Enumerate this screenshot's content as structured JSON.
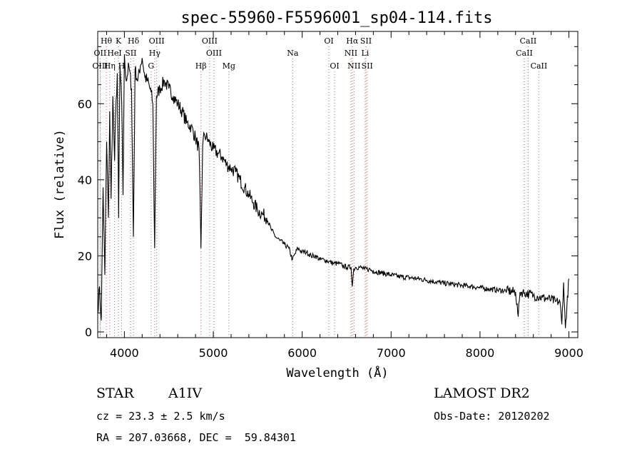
{
  "chart_data": {
    "type": "line",
    "title": "spec-55960-F5596001_sp04-114.fits",
    "xlabel": "Wavelength (Å)",
    "ylabel": "Flux (relative)",
    "xlim": [
      3700,
      9100
    ],
    "ylim": [
      -1.5,
      79
    ],
    "xticks": [
      4000,
      5000,
      6000,
      7000,
      8000,
      9000
    ],
    "yticks": [
      0,
      20,
      40,
      60
    ],
    "grid": false,
    "series": [
      {
        "x": [
          3700,
          3720,
          3740,
          3760,
          3780,
          3800,
          3820,
          3835,
          3850,
          3870,
          3890,
          3900,
          3920,
          3935,
          3950,
          3970,
          3985,
          4000,
          4020,
          4050,
          4080,
          4101,
          4120,
          4150,
          4180,
          4200,
          4230,
          4260,
          4300,
          4320,
          4340,
          4360,
          4400,
          4450,
          4500,
          4550,
          4600,
          4650,
          4700,
          4750,
          4800,
          4840,
          4861,
          4880,
          4900,
          4950,
          5000,
          5050,
          5100,
          5150,
          5200,
          5250,
          5300,
          5350,
          5400,
          5450,
          5500,
          5550,
          5600,
          5650,
          5700,
          5750,
          5800,
          5850,
          5890,
          5950,
          6000,
          6050,
          6100,
          6150,
          6200,
          6250,
          6300,
          6350,
          6400,
          6450,
          6500,
          6550,
          6563,
          6580,
          6600,
          6650,
          6700,
          6750,
          6800,
          6900,
          7000,
          7100,
          7200,
          7300,
          7400,
          7500,
          7600,
          7700,
          7800,
          7900,
          8000,
          8100,
          8200,
          8300,
          8400,
          8430,
          8450,
          8500,
          8550,
          8600,
          8650,
          8700,
          8750,
          8800,
          8850,
          8900,
          8920,
          8940,
          8960,
          9000
        ],
        "y": [
          5,
          12,
          3,
          38,
          15,
          50,
          30,
          58,
          35,
          62,
          45,
          56,
          68,
          30,
          70,
          60,
          36,
          73,
          66,
          70,
          64,
          25,
          69,
          66,
          70,
          72,
          67,
          66,
          63,
          60,
          22,
          62,
          64,
          66,
          64,
          62,
          60,
          58,
          55,
          54,
          51,
          48,
          22,
          49,
          52,
          50,
          48,
          47,
          46,
          44,
          43,
          42,
          40,
          38,
          36,
          34,
          32,
          31,
          30,
          27,
          25,
          24,
          23,
          22,
          19,
          22,
          21,
          21,
          20,
          20,
          19,
          19,
          18.5,
          18,
          18,
          17.5,
          17,
          17,
          12,
          16.5,
          17,
          17,
          16.5,
          16.5,
          16,
          15.5,
          15,
          14.5,
          14.3,
          14,
          13.6,
          13.2,
          12.8,
          12.5,
          12.2,
          12,
          11.6,
          11.3,
          11,
          10.8,
          10.5,
          4,
          10.5,
          10.3,
          10,
          9.6,
          9.3,
          9,
          8.8,
          8.5,
          8,
          7.8,
          2,
          13,
          1,
          14
        ]
      }
    ],
    "lines": [
      {
        "name": "Hθ",
        "wl": 3797,
        "row": 1,
        "color": "#d06060"
      },
      {
        "name": "K",
        "wl": 3934,
        "row": 1,
        "color": "#808080"
      },
      {
        "name": "Hδ",
        "wl": 4102,
        "row": 1,
        "color": "#d06060"
      },
      {
        "name": "OIII",
        "wl": 4363,
        "row": 1,
        "color": "#808080"
      },
      {
        "name": "OIII",
        "wl": 4959,
        "row": 1,
        "color": "#808080"
      },
      {
        "name": "OI",
        "wl": 6300,
        "row": 1,
        "color": "#808080"
      },
      {
        "name": "Hα",
        "wl": 6563,
        "row": 1,
        "color": "#d06060"
      },
      {
        "name": "SII",
        "wl": 6717,
        "row": 1,
        "color": "#d06060"
      },
      {
        "name": "CaII",
        "wl": 8542,
        "row": 1,
        "color": "#808080"
      },
      {
        "name": "OII",
        "wl": 3727,
        "row": 2,
        "color": "#808080"
      },
      {
        "name": "HeI",
        "wl": 3889,
        "row": 2,
        "color": "#808080"
      },
      {
        "name": "SII",
        "wl": 4072,
        "row": 2,
        "color": "#808080"
      },
      {
        "name": "Hγ",
        "wl": 4341,
        "row": 2,
        "color": "#d06060"
      },
      {
        "name": "OIII",
        "wl": 5007,
        "row": 2,
        "color": "#808080"
      },
      {
        "name": "Na",
        "wl": 5893,
        "row": 2,
        "color": "#808080"
      },
      {
        "name": "NII",
        "wl": 6548,
        "row": 2,
        "color": "#d06060"
      },
      {
        "name": "Li",
        "wl": 6708,
        "row": 2,
        "color": "#808080"
      },
      {
        "name": "CaII",
        "wl": 8498,
        "row": 2,
        "color": "#808080"
      },
      {
        "name": "OIII",
        "wl": 3727,
        "row": 3,
        "color": "#808080"
      },
      {
        "name": "Hη",
        "wl": 3835,
        "row": 3,
        "color": "#d06060"
      },
      {
        "name": "H",
        "wl": 3968,
        "row": 3,
        "color": "#808080"
      },
      {
        "name": "G",
        "wl": 4300,
        "row": 3,
        "color": "#808080"
      },
      {
        "name": "Hβ",
        "wl": 4861,
        "row": 3,
        "color": "#d06060"
      },
      {
        "name": "Mg",
        "wl": 5175,
        "row": 3,
        "color": "#808080"
      },
      {
        "name": "OI",
        "wl": 6364,
        "row": 3,
        "color": "#808080"
      },
      {
        "name": "NII",
        "wl": 6583,
        "row": 3,
        "color": "#d06060"
      },
      {
        "name": "SII",
        "wl": 6731,
        "row": 3,
        "color": "#d06060"
      },
      {
        "name": "CaII",
        "wl": 8662,
        "row": 3,
        "color": "#808080"
      }
    ]
  },
  "info": {
    "class_label": "STAR",
    "subclass": "A1IV",
    "survey": "LAMOST DR2",
    "cz": "cz = 23.3 ± 2.5 km/s",
    "obs_date": "Obs-Date: 20120202",
    "radec": "RA = 207.03668, DEC =  59.84301"
  }
}
